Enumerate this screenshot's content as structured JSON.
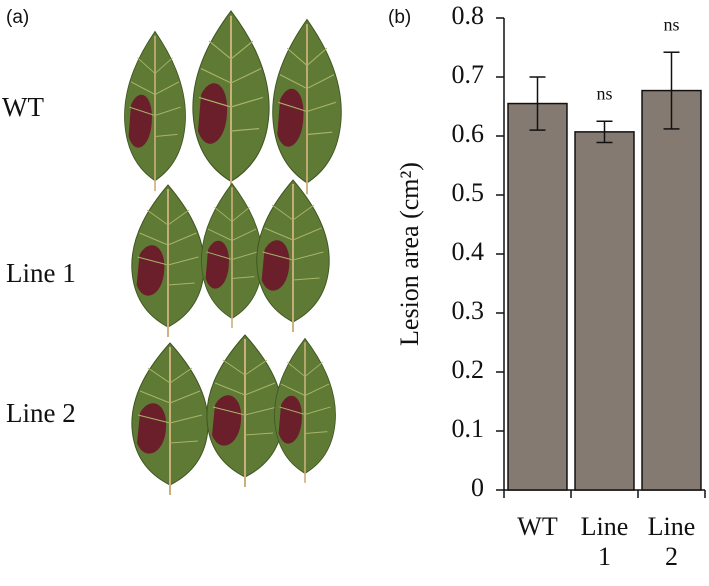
{
  "panel_a": {
    "label": "(a)",
    "rows": [
      "WT",
      "Line 1",
      "Line 2"
    ]
  },
  "chart_data": {
    "type": "bar",
    "panel_label": "(b)",
    "ylabel": "Lesion area (cm²)",
    "categories": [
      "WT",
      "Line 1",
      "Line 2"
    ],
    "values": [
      0.655,
      0.607,
      0.677
    ],
    "errors": [
      0.045,
      0.018,
      0.065
    ],
    "color": "#857a72",
    "ylim": [
      0,
      0.8
    ],
    "yticks": [
      0,
      0.1,
      0.2,
      0.3,
      0.4,
      0.5,
      0.6,
      0.7,
      0.8
    ],
    "annotations": [
      {
        "text": "ns",
        "category": "Line 1"
      },
      {
        "text": "ns",
        "category": "Line 2"
      }
    ]
  }
}
